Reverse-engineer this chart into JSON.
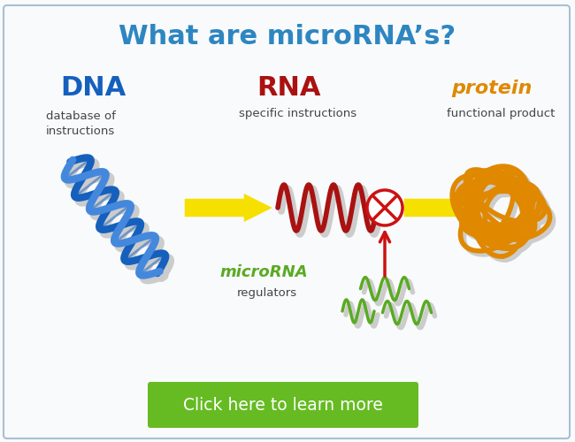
{
  "title": "What are microRNA’s?",
  "title_color": "#2e86c1",
  "title_fontsize": 22,
  "bg_color": "#f8fafc",
  "border_color": "#aabfd0",
  "dna_label": "DNA",
  "dna_sublabel": "database of\ninstructions",
  "dna_color": "#1560bd",
  "dna_color2": "#4488dd",
  "rna_label": "RNA",
  "rna_sublabel": "specific instructions",
  "rna_color": "#aa1111",
  "protein_label": "protein",
  "protein_sublabel": "functional product",
  "protein_color": "#e08800",
  "mirna_label": "microRNA",
  "mirna_sublabel": "regulators",
  "mirna_color": "#5aaa22",
  "arrow_color": "#f5e000",
  "arrow_edge_color": "#b8a800",
  "inhibit_color": "#cc1111",
  "button_color": "#66bb22",
  "button_text": "Click here to learn more",
  "button_text_color": "#ffffff",
  "shadow_color": "#cccccc"
}
